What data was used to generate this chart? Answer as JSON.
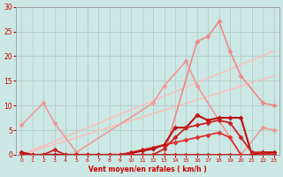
{
  "xlabel": "Vent moyen/en rafales ( km/h )",
  "xlim": [
    -0.5,
    23.5
  ],
  "ylim": [
    0,
    30
  ],
  "yticks": [
    0,
    5,
    10,
    15,
    20,
    25,
    30
  ],
  "xticks": [
    0,
    1,
    2,
    3,
    4,
    5,
    6,
    7,
    8,
    9,
    10,
    11,
    12,
    13,
    14,
    15,
    16,
    17,
    18,
    19,
    20,
    21,
    22,
    23
  ],
  "bg_color": "#cce8e4",
  "grid_color": "#b0c8c4",
  "xlabel_color": "#cc0000",
  "tick_color": "#cc0000",
  "lines": [
    {
      "x": [
        0,
        23
      ],
      "y": [
        0,
        21
      ],
      "color": "#ffbbbb",
      "lw": 1.0,
      "marker": null,
      "ms": 0
    },
    {
      "x": [
        0,
        23
      ],
      "y": [
        0,
        16
      ],
      "color": "#ffbbbb",
      "lw": 1.0,
      "marker": null,
      "ms": 0
    },
    {
      "x": [
        0,
        13,
        16,
        17,
        18,
        19,
        20,
        22,
        23
      ],
      "y": [
        0,
        0,
        23,
        24,
        27,
        21,
        16,
        10.5,
        10
      ],
      "color": "#ee8888",
      "lw": 1.2,
      "marker": "D",
      "ms": 2.5
    },
    {
      "x": [
        0,
        2,
        3,
        5,
        12,
        13,
        15,
        16,
        20,
        22,
        23
      ],
      "y": [
        6,
        10.5,
        6.5,
        0.5,
        10.5,
        14,
        19,
        14,
        0,
        5.5,
        5
      ],
      "color": "#ee9999",
      "lw": 1.2,
      "marker": "D",
      "ms": 2.5
    },
    {
      "x": [
        0,
        1,
        2,
        3,
        4,
        5,
        6,
        7,
        8,
        9,
        10,
        11,
        12,
        13,
        14,
        15,
        16,
        17,
        18,
        19,
        20,
        21,
        22,
        23
      ],
      "y": [
        0,
        0,
        0,
        0,
        0,
        0,
        0,
        0,
        0,
        0,
        0,
        0,
        0,
        0,
        0,
        0,
        0,
        0,
        0,
        0,
        0,
        0,
        0,
        0
      ],
      "color": "#cc2222",
      "lw": 1.5,
      "marker": "D",
      "ms": 2.5
    },
    {
      "x": [
        0,
        1,
        2,
        3,
        4,
        5,
        6,
        7,
        8,
        9,
        10,
        11,
        12,
        13,
        14,
        15,
        16,
        17,
        18,
        19,
        20,
        21,
        22,
        23
      ],
      "y": [
        0,
        0,
        0,
        0,
        0,
        0,
        0,
        0,
        0,
        0,
        0.5,
        1.0,
        1.5,
        2.0,
        2.5,
        3.0,
        3.5,
        4.0,
        4.5,
        3.5,
        0,
        0,
        0,
        0
      ],
      "color": "#dd3333",
      "lw": 1.3,
      "marker": "D",
      "ms": 2.5
    },
    {
      "x": [
        0,
        1,
        2,
        3,
        4,
        5,
        6,
        7,
        8,
        9,
        10,
        11,
        12,
        13,
        14,
        15,
        16,
        17,
        18,
        19,
        20,
        21,
        22,
        23
      ],
      "y": [
        0.5,
        0,
        0,
        0,
        0,
        0,
        0,
        0,
        0,
        0,
        0.3,
        0.8,
        1.2,
        2.0,
        5.5,
        5.5,
        8.0,
        7.0,
        7.5,
        7.5,
        7.5,
        0,
        0.5,
        0.5
      ],
      "color": "#bb1111",
      "lw": 1.5,
      "marker": "D",
      "ms": 2.5
    },
    {
      "x": [
        0,
        1,
        2,
        3,
        4,
        5,
        6,
        7,
        8,
        9,
        10,
        11,
        12,
        13,
        14,
        15,
        16,
        17,
        18,
        19,
        20,
        21,
        22,
        23
      ],
      "y": [
        0,
        0,
        0,
        1,
        0,
        0,
        0,
        0,
        0,
        0,
        0,
        0,
        0,
        1.2,
        3.5,
        5.5,
        6.0,
        6.5,
        7.0,
        6.5,
        3.5,
        0.5,
        0.5,
        0
      ],
      "color": "#cc2222",
      "lw": 1.3,
      "marker": "D",
      "ms": 2.5
    }
  ]
}
